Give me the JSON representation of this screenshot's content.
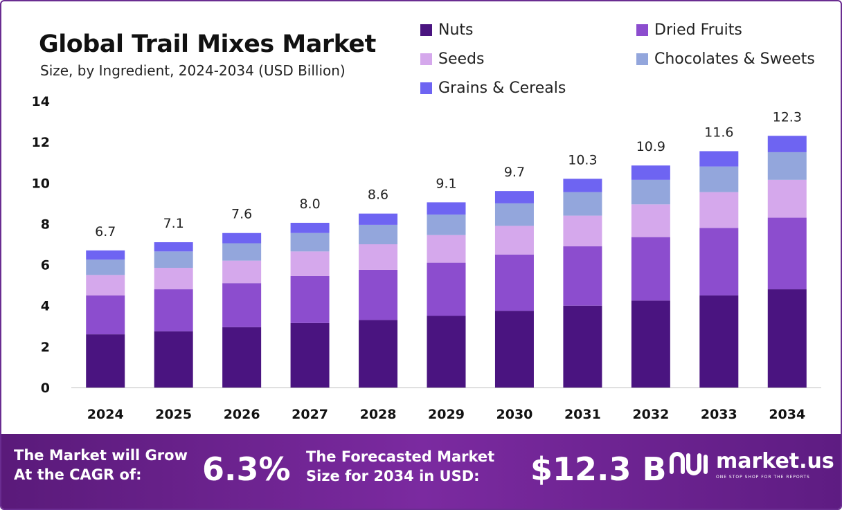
{
  "title": "Global Trail Mixes Market",
  "subtitle": "Size, by Ingredient, 2024-2034 (USD Billion)",
  "legend": [
    {
      "label": "Nuts",
      "color": "#4a1480"
    },
    {
      "label": "Dried Fruits",
      "color": "#8c4dce"
    },
    {
      "label": "Seeds",
      "color": "#d5a8ec"
    },
    {
      "label": "Chocolates & Sweets",
      "color": "#93a6dc"
    },
    {
      "label": "Grains & Cereals",
      "color": "#6e64f2"
    }
  ],
  "chart_data": {
    "type": "bar",
    "stacked": true,
    "categories": [
      "2024",
      "2025",
      "2026",
      "2027",
      "2028",
      "2029",
      "2030",
      "2031",
      "2032",
      "2033",
      "2034"
    ],
    "series": [
      {
        "name": "Nuts",
        "values": [
          2.6,
          2.75,
          2.95,
          3.15,
          3.3,
          3.5,
          3.75,
          4.0,
          4.25,
          4.5,
          4.8
        ]
      },
      {
        "name": "Dried Fruits",
        "values": [
          1.9,
          2.05,
          2.15,
          2.3,
          2.45,
          2.6,
          2.75,
          2.9,
          3.1,
          3.3,
          3.5
        ]
      },
      {
        "name": "Seeds",
        "values": [
          1.0,
          1.05,
          1.1,
          1.2,
          1.25,
          1.35,
          1.4,
          1.5,
          1.6,
          1.75,
          1.85
        ]
      },
      {
        "name": "Chocolates & Sweets",
        "values": [
          0.75,
          0.8,
          0.85,
          0.9,
          0.95,
          1.0,
          1.1,
          1.15,
          1.2,
          1.25,
          1.35
        ]
      },
      {
        "name": "Grains & Cereals",
        "values": [
          0.45,
          0.45,
          0.5,
          0.5,
          0.55,
          0.6,
          0.6,
          0.65,
          0.7,
          0.75,
          0.8
        ]
      }
    ],
    "totals": [
      "6.7",
      "7.1",
      "7.6",
      "8.0",
      "8.6",
      "9.1",
      "9.7",
      "10.3",
      "10.9",
      "11.6",
      "12.3"
    ],
    "ylim": [
      0,
      14
    ],
    "yticks": [
      0,
      2,
      4,
      6,
      8,
      10,
      12,
      14
    ],
    "grid": false,
    "legend_position": "top-right"
  },
  "footer": {
    "cagr_line1": "The Market will Grow",
    "cagr_line2": "At the CAGR of:",
    "cagr_value": "6.3%",
    "forecast_line1": "The Forecasted Market",
    "forecast_line2": "Size for 2034 in USD:",
    "forecast_value": "$12.3 B",
    "brand_name": "market.us",
    "brand_tagline": "ONE STOP SHOP FOR THE REPORTS"
  }
}
